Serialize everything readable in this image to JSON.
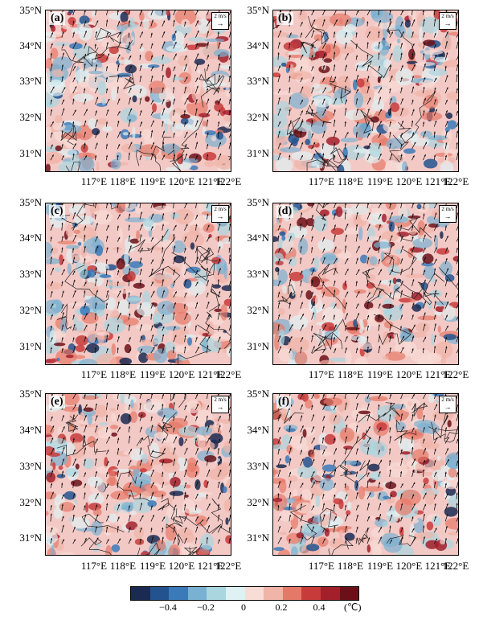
{
  "y_ticks": [
    "35°N",
    "34°N",
    "33°N",
    "32°N",
    "31°N"
  ],
  "x_ticks": [
    "117°E",
    "118°E",
    "119°E",
    "120°E",
    "121°E",
    "122°E"
  ],
  "ref_vector": {
    "label": "2 m/s",
    "arrow": "→"
  },
  "panels": [
    {
      "label": "(a)"
    },
    {
      "label": "(b)"
    },
    {
      "label": "(c)"
    },
    {
      "label": "(d)"
    },
    {
      "label": "(e)"
    },
    {
      "label": "(f)"
    }
  ],
  "colorbar": {
    "colors": [
      "#1b2a52",
      "#23538f",
      "#3a7ab8",
      "#7ab0d2",
      "#a9d6df",
      "#dff1f3",
      "#f8dcd6",
      "#f0b4a8",
      "#e57968",
      "#c83b3b",
      "#a31f2a",
      "#6b1018"
    ],
    "labels": [
      "−0.4",
      "−0.2",
      "0",
      "0.2",
      "0.4"
    ],
    "unit": "(℃)"
  }
}
